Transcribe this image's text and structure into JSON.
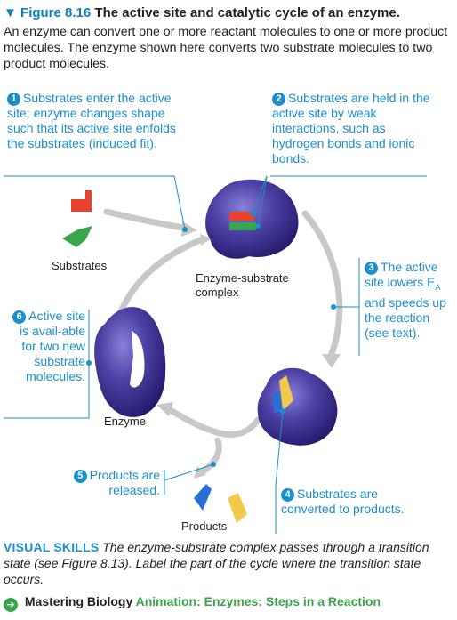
{
  "figure": {
    "marker": "▼",
    "number": "Figure 8.16",
    "title": "The active site and catalytic cycle of an enzyme.",
    "caption": "An enzyme can convert one or more reactant molecules to one or more product molecules. The enzyme shown here converts two substrate molecules to two product molecules."
  },
  "steps": [
    {
      "n": "1",
      "text": "Substrates enter the active site; enzyme changes shape such that its active site enfolds the substrates (induced fit)."
    },
    {
      "n": "2",
      "text": "Substrates are held in the active site by weak interactions, such as hydrogen bonds and ionic bonds."
    },
    {
      "n": "3",
      "text_a": "The active site lowers",
      "text_sub_main": "E",
      "text_sub": "A",
      "text_b": "and speeds up the reaction (see text)."
    },
    {
      "n": "4",
      "text": "Substrates are converted to products."
    },
    {
      "n": "5",
      "text": "Products are released."
    },
    {
      "n": "6",
      "text": "Active site is avail-able for two new substrate molecules."
    }
  ],
  "labels": {
    "substrates": "Substrates",
    "complex": "Enzyme-substrate complex",
    "enzyme": "Enzyme",
    "products": "Products"
  },
  "visual_skills": {
    "heading": "VISUAL SKILLS",
    "text": "The enzyme-substrate complex passes through a transition state (see Figure 8.13). Label the part of the cycle where the transition state occurs."
  },
  "mastering": {
    "icon": "arrow-circle-icon",
    "brand": "Mastering Biology",
    "link": "Animation: Enzymes: Steps in a Reaction"
  },
  "colors": {
    "accent": "#1a8fd0",
    "enzyme": "#4a3f9c",
    "substrate_red": "#e8432d",
    "substrate_green": "#3aa54b",
    "product_blue": "#2a6fd6",
    "product_yellow": "#f2c94c",
    "cycle_arrow": "#c8c8c8",
    "mastering_green": "#3aa54b"
  }
}
